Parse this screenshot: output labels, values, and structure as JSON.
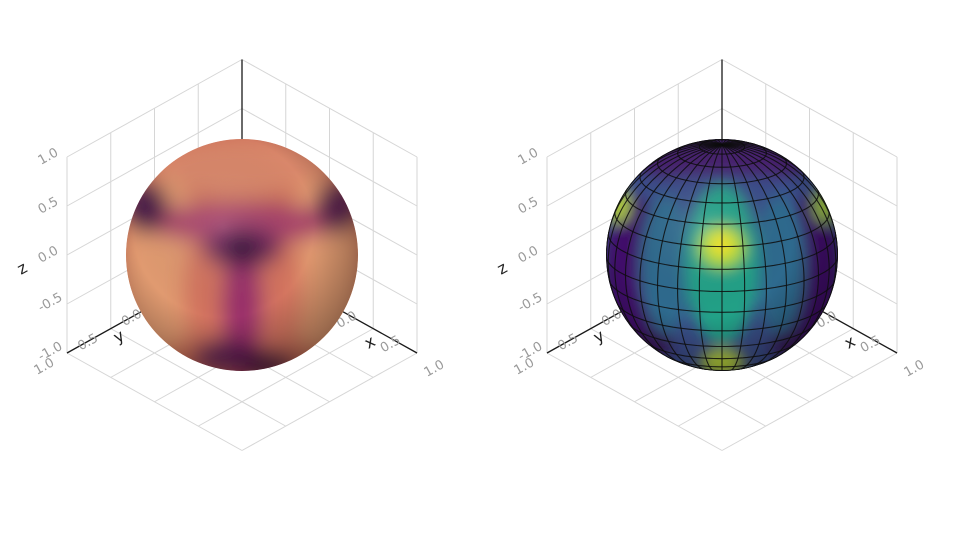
{
  "chart_data": [
    {
      "type": "surface",
      "shape": "sphere",
      "colormap": "inferno",
      "shading": "smooth",
      "wireframe": false,
      "axes": {
        "x": {
          "label": "x",
          "range": [
            -1,
            1
          ],
          "ticks": [
            "-1.0",
            "-0.5",
            "0.0",
            "0.5",
            "1.0"
          ]
        },
        "y": {
          "label": "y",
          "range": [
            -1,
            1
          ],
          "ticks": [
            "-1.0",
            "-0.5",
            "0.0",
            "0.5",
            "1.0"
          ]
        },
        "z": {
          "label": "z",
          "range": [
            -1,
            1
          ],
          "ticks": [
            "-1.0",
            "-0.5",
            "0.0",
            "0.5",
            "1.0"
          ]
        }
      },
      "grid": true
    },
    {
      "type": "surface",
      "shape": "sphere",
      "colormap": "viridis",
      "shading": "flat",
      "wireframe": true,
      "axes": {
        "x": {
          "label": "x",
          "range": [
            -1,
            1
          ],
          "ticks": [
            "-1.0",
            "-0.5",
            "0.0",
            "0.5",
            "1.0"
          ]
        },
        "y": {
          "label": "y",
          "range": [
            -1,
            1
          ],
          "ticks": [
            "-1.0",
            "-0.5",
            "0.0",
            "0.5",
            "1.0"
          ]
        },
        "z": {
          "label": "z",
          "range": [
            -1,
            1
          ],
          "ticks": [
            "-1.0",
            "-0.5",
            "0.0",
            "0.5",
            "1.0"
          ]
        }
      },
      "grid": true
    }
  ]
}
